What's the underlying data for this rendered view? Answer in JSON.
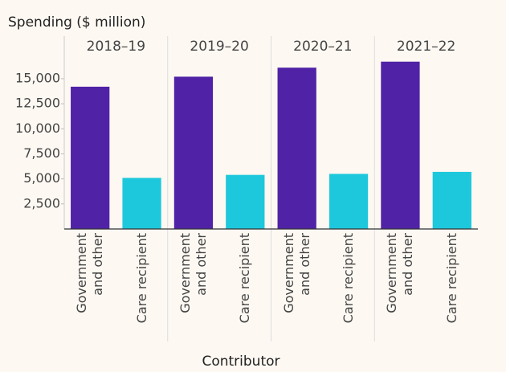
{
  "chart_data": {
    "type": "bar",
    "title": "Spending ($ million)",
    "x_label": "Contributor",
    "facets": [
      "2018–19",
      "2019–20",
      "2020–21",
      "2021–22"
    ],
    "series": [
      {
        "name": "Government and other",
        "color": "#5023a6",
        "values": [
          14200,
          15200,
          16100,
          16700
        ]
      },
      {
        "name": "Care recipient",
        "color": "#1ec8dc",
        "values": [
          5100,
          5400,
          5500,
          5700
        ]
      }
    ],
    "ylim": [
      0,
      17400
    ],
    "yticks": [
      {
        "value": 2500,
        "label": "2,500"
      },
      {
        "value": 5000,
        "label": "5,000"
      },
      {
        "value": 7500,
        "label": "7,500"
      },
      {
        "value": 10000,
        "label": "10,000"
      },
      {
        "value": 12500,
        "label": "12,500"
      },
      {
        "value": 15000,
        "label": "15,000"
      }
    ]
  }
}
